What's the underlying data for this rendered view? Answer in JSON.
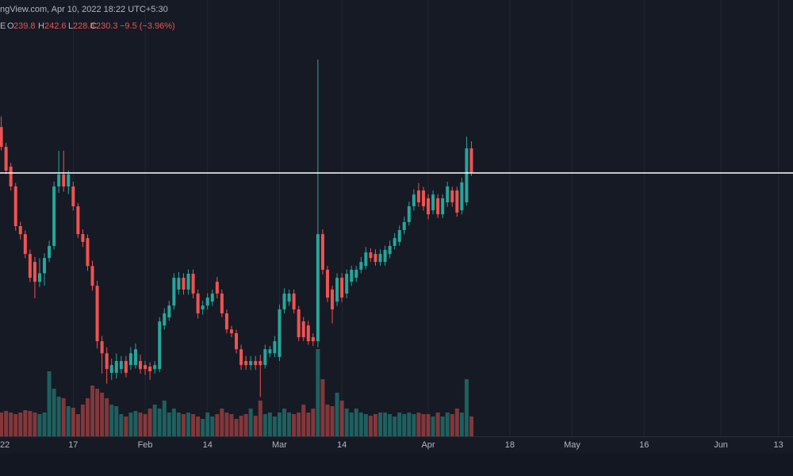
{
  "chart_data": {
    "type": "candlestick",
    "source_text": "ngView.com, Apr 10, 2022 18:22 UTC+5:30",
    "symbol_suffix": "E",
    "ohlc_letters": [
      "O",
      "H",
      "L",
      "C"
    ],
    "change_label": "−9.5 (−3.96%)",
    "up_color": "#26a69a",
    "down_color": "#ef5350",
    "grid": true,
    "x": [
      1,
      2,
      3,
      4,
      5,
      6,
      7,
      8,
      9,
      10,
      11,
      12,
      13,
      14,
      15,
      16,
      17,
      18,
      19,
      20,
      21,
      22,
      23,
      24,
      25,
      26,
      27,
      28,
      29,
      30,
      31,
      32,
      33,
      34,
      35,
      36,
      37,
      38,
      39,
      40,
      41,
      42,
      43,
      44,
      45,
      46,
      47,
      48,
      49,
      50,
      51,
      52,
      53,
      54,
      55,
      56,
      57,
      58,
      59,
      60,
      61,
      62,
      63,
      64,
      65,
      66,
      67,
      68,
      69,
      70,
      71,
      72,
      73,
      74,
      75,
      76,
      77,
      78,
      79,
      80,
      81,
      82,
      83,
      84,
      85,
      86,
      87,
      88,
      89,
      90,
      91,
      92,
      93,
      94,
      95,
      96,
      97,
      98,
      99
    ],
    "open": [
      248.3,
      240.4,
      232.5,
      224.6,
      208.8,
      205.6,
      197.7,
      194.5,
      186.6,
      190.0,
      196.1,
      200.9,
      224.6,
      229.4,
      224.6,
      224.6,
      216.7,
      205.6,
      204.0,
      192.9,
      185.0,
      162.9,
      158.1,
      150.3,
      150.3,
      151.8,
      155.0,
      153.4,
      153.4,
      155.0,
      153.4,
      152.8,
      151.8,
      151.8,
      169.2,
      172.4,
      177.1,
      183.5,
      188.2,
      183.5,
      189.8,
      181.9,
      175.6,
      177.1,
      178.7,
      186.6,
      181.9,
      174.0,
      167.6,
      166.1,
      159.7,
      155.0,
      153.4,
      155.0,
      155.0,
      153.4,
      158.1,
      158.1,
      156.6,
      175.6,
      178.7,
      181.9,
      175.6,
      170.8,
      169.2,
      164.5,
      162.9,
      205.6,
      191.4,
      183.5,
      178.7,
      188.2,
      181.9,
      186.6,
      188.2,
      191.4,
      192.9,
      198.3,
      197.7,
      194.5,
      194.5,
      197.7,
      200.9,
      202.5,
      207.2,
      210.4,
      216.7,
      223.0,
      223.0,
      219.9,
      215.1,
      219.9,
      213.5,
      218.3,
      223.0,
      223.0,
      215.1,
      218.3,
      239.8
    ],
    "high": [
      252.5,
      242.0,
      234.0,
      226.0,
      210.5,
      207.0,
      199.5,
      196.5,
      196.0,
      198.0,
      203.0,
      226.5,
      238.8,
      238.8,
      231.0,
      226.5,
      218.0,
      207.5,
      205.5,
      195.0,
      187.0,
      165.0,
      160.5,
      156.0,
      158.0,
      157.0,
      157.0,
      160.5,
      162.0,
      157.5,
      155.0,
      154.5,
      155.0,
      172.5,
      176.0,
      179.0,
      190.0,
      190.5,
      190.0,
      191.5,
      191.5,
      183.5,
      179.0,
      182.0,
      183.5,
      188.5,
      183.5,
      175.5,
      169.0,
      167.5,
      161.5,
      157.0,
      157.0,
      157.0,
      157.5,
      161.5,
      161.0,
      165.0,
      177.5,
      184.0,
      183.5,
      183.5,
      177.0,
      172.5,
      171.0,
      166.0,
      275.2,
      207.5,
      193.0,
      185.0,
      190.0,
      190.0,
      191.5,
      193.0,
      193.0,
      196.5,
      200.5,
      200.0,
      199.5,
      199.5,
      201.0,
      203.0,
      206.0,
      209.0,
      212.5,
      218.5,
      223.5,
      226.0,
      224.5,
      221.5,
      223.0,
      221.5,
      221.5,
      226.5,
      224.5,
      224.5,
      228.0,
      244.5,
      242.6
    ],
    "low": [
      239.0,
      229.5,
      223.0,
      207.0,
      203.5,
      196.0,
      186.5,
      180.0,
      184.5,
      185.0,
      194.5,
      199.5,
      222.0,
      222.5,
      221.5,
      215.0,
      204.0,
      200.5,
      191.0,
      183.0,
      160.0,
      150.0,
      146.0,
      147.5,
      148.0,
      150.0,
      148.5,
      151.5,
      152.0,
      150.0,
      149.5,
      147.5,
      150.0,
      150.5,
      167.5,
      171.0,
      175.5,
      181.5,
      181.5,
      181.5,
      180.0,
      172.0,
      173.5,
      175.5,
      177.0,
      180.0,
      172.5,
      166.0,
      164.5,
      158.0,
      151.5,
      151.5,
      151.5,
      151.5,
      140.7,
      152.0,
      156.5,
      156.5,
      155.0,
      174.0,
      177.0,
      174.0,
      163.0,
      163.0,
      161.5,
      161.0,
      160.5,
      189.5,
      178.5,
      170.0,
      177.0,
      178.5,
      180.0,
      185.0,
      186.5,
      190.0,
      191.5,
      194.5,
      193.0,
      193.0,
      193.0,
      196.0,
      199.5,
      201.0,
      205.5,
      209.0,
      215.0,
      216.5,
      215.0,
      211.5,
      213.5,
      212.0,
      212.0,
      216.5,
      216.5,
      212.5,
      213.5,
      217.0,
      228.8
    ],
    "close": [
      240.4,
      230.9,
      224.6,
      208.8,
      205.6,
      197.7,
      188.2,
      186.6,
      190.0,
      196.1,
      200.9,
      224.6,
      229.4,
      224.6,
      229.4,
      216.7,
      205.6,
      202.5,
      192.9,
      185.0,
      162.9,
      158.1,
      151.8,
      153.4,
      155.0,
      155.0,
      150.3,
      158.1,
      159.7,
      151.8,
      151.8,
      150.9,
      153.4,
      170.8,
      174.0,
      177.1,
      188.2,
      188.2,
      183.5,
      189.8,
      181.9,
      174.0,
      177.1,
      180.3,
      181.9,
      181.9,
      174.0,
      167.6,
      166.1,
      159.7,
      153.4,
      153.4,
      155.0,
      153.4,
      153.4,
      159.7,
      159.7,
      162.9,
      175.6,
      181.9,
      181.9,
      175.6,
      164.5,
      164.5,
      162.9,
      162.9,
      205.6,
      191.4,
      180.3,
      175.6,
      188.2,
      180.3,
      189.8,
      191.4,
      191.4,
      194.5,
      198.3,
      196.1,
      194.5,
      197.7,
      199.3,
      200.9,
      204.0,
      207.2,
      210.4,
      216.7,
      221.4,
      218.3,
      216.7,
      213.5,
      221.4,
      213.5,
      219.9,
      224.6,
      218.3,
      214.2,
      226.2,
      239.8,
      230.3
    ],
    "volume": [
      30,
      32,
      30,
      28,
      30,
      33,
      32,
      30,
      28,
      30,
      82,
      60,
      50,
      48,
      38,
      36,
      28,
      40,
      48,
      64,
      60,
      55,
      48,
      40,
      38,
      28,
      25,
      30,
      32,
      30,
      28,
      35,
      40,
      35,
      45,
      30,
      35,
      30,
      28,
      30,
      28,
      25,
      22,
      30,
      25,
      28,
      35,
      30,
      28,
      22,
      26,
      28,
      35,
      26,
      45,
      28,
      30,
      25,
      30,
      35,
      30,
      28,
      30,
      40,
      30,
      35,
      110,
      72,
      40,
      38,
      55,
      45,
      35,
      30,
      35,
      30,
      28,
      26,
      28,
      30,
      30,
      28,
      25,
      30,
      28,
      30,
      28,
      30,
      28,
      28,
      25,
      30,
      25,
      30,
      28,
      35,
      30,
      72,
      25
    ],
    "horizontal_line": 230.0,
    "xlim": [
      0.74,
      166.03
    ],
    "ylim": [
      135,
      300
    ],
    "volume_lim": [
      0,
      250
    ],
    "xticks": [
      {
        "value": 0,
        "label": "22"
      },
      {
        "value": 16,
        "label": "17"
      },
      {
        "value": 31,
        "label": "Feb"
      },
      {
        "value": 44,
        "label": "14"
      },
      {
        "value": 59,
        "label": "Mar"
      },
      {
        "value": 72,
        "label": "14"
      },
      {
        "value": 90,
        "label": "Apr"
      },
      {
        "value": 107,
        "label": "18"
      },
      {
        "value": 120,
        "label": "May"
      },
      {
        "value": 135,
        "label": "16"
      },
      {
        "value": 151,
        "label": "Jun"
      },
      {
        "value": 163,
        "label": "13"
      }
    ]
  }
}
